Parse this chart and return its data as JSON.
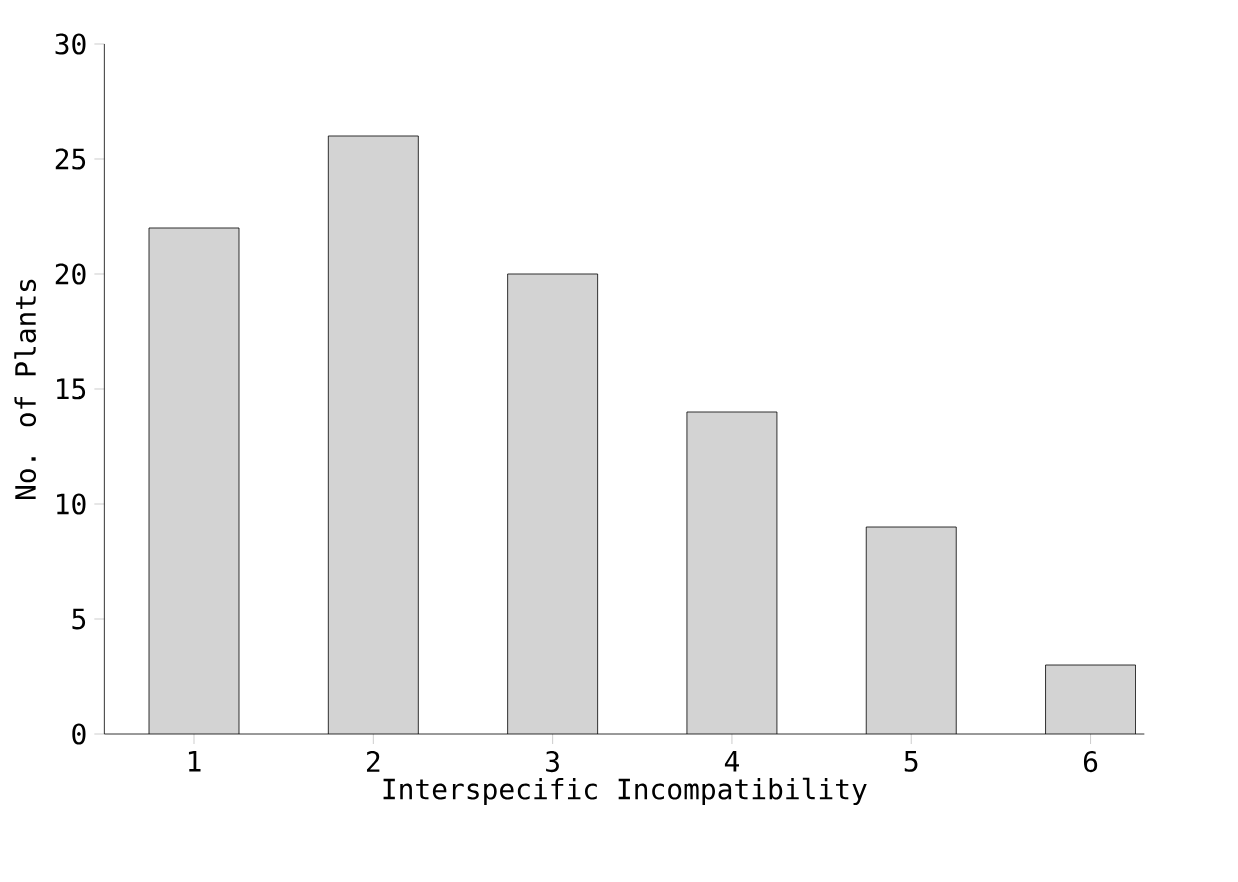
{
  "chart_data": {
    "type": "bar",
    "xlabel": "Interspecific Incompatibility",
    "ylabel": "No. of Plants",
    "categories": [
      "1",
      "2",
      "3",
      "4",
      "5",
      "6"
    ],
    "values": [
      22,
      26,
      20,
      14,
      9,
      3
    ],
    "color": "#d3d3d3",
    "ylim": [
      0,
      30
    ],
    "yticks": [
      0,
      5,
      10,
      15,
      20,
      25,
      30
    ]
  }
}
